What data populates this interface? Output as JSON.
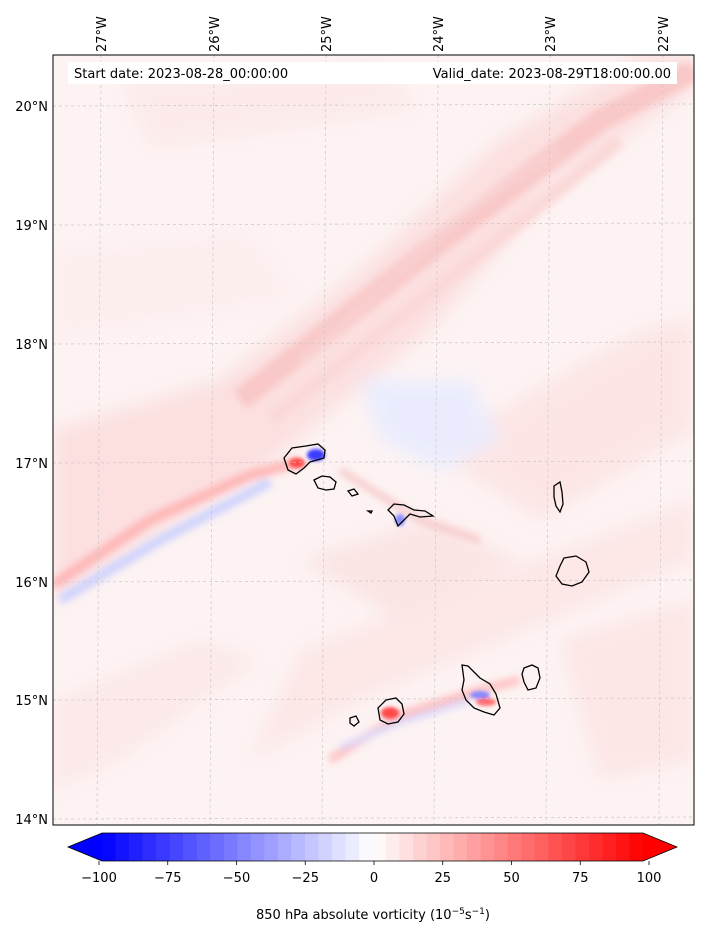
{
  "header": {
    "start_date": "Start date: 2023-08-28_00:00:00",
    "valid_date": "Valid_date: 2023-08-29T18:00:00.00"
  },
  "map": {
    "variable": "850 hPa absolute vorticity",
    "lon_ticks": [
      "27°W",
      "26°W",
      "25°W",
      "24°W",
      "23°W",
      "22°W"
    ],
    "lat_ticks": [
      "20°N",
      "19°N",
      "18°N",
      "17°N",
      "16°N",
      "15°N",
      "14°N"
    ],
    "gridlines": true,
    "islands": [
      "Santo Antão",
      "São Vicente",
      "Santa Luzia",
      "São Nicolau",
      "Sal",
      "Boa Vista",
      "Maio",
      "Santiago",
      "Fogo",
      "Brava"
    ]
  },
  "colorbar": {
    "ticks": [
      "−100",
      "−75",
      "−50",
      "−25",
      "0",
      "25",
      "50",
      "75",
      "100"
    ],
    "min": -100,
    "max": 100,
    "extend": "both",
    "label_main": "850 hPa absolute vorticity (10",
    "label_exp1": "−5",
    "label_mid": "s",
    "label_exp2": "−1",
    "label_end": ")",
    "colors": {
      "negative": "#0000ff",
      "zero": "#ffffff",
      "positive": "#ff0000"
    }
  }
}
